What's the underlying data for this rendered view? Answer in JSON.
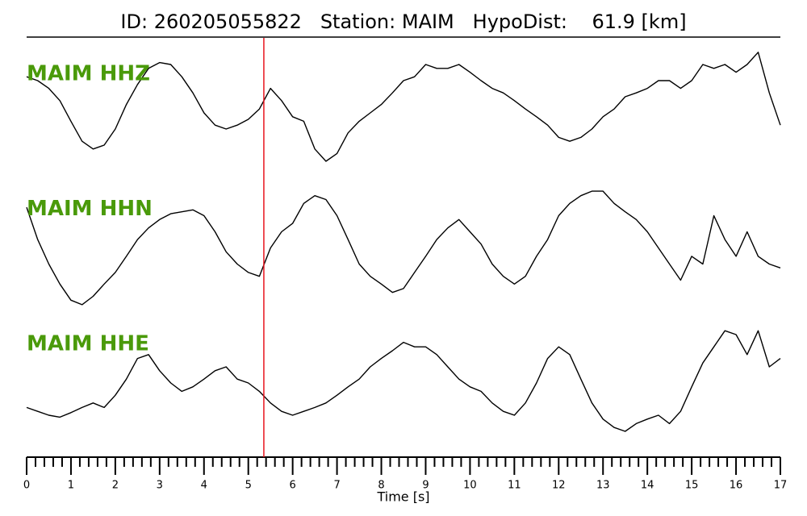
{
  "chart_data": {
    "type": "line",
    "title": "ID: 260205055822   Station: MAIM   HypoDist:    61.9 [km]",
    "xlabel": "Time [s]",
    "x": [
      0,
      0.25,
      0.5,
      0.75,
      1,
      1.25,
      1.5,
      1.75,
      2,
      2.25,
      2.5,
      2.75,
      3,
      3.25,
      3.5,
      3.75,
      4,
      4.25,
      4.5,
      4.75,
      5,
      5.25,
      5.5,
      5.75,
      6,
      6.25,
      6.5,
      6.75,
      7,
      7.25,
      7.5,
      7.75,
      8,
      8.25,
      8.5,
      8.75,
      9,
      9.25,
      9.5,
      9.75,
      10,
      10.25,
      10.5,
      10.75,
      11,
      11.25,
      11.5,
      11.75,
      12,
      12.25,
      12.5,
      12.75,
      13,
      13.25,
      13.5,
      13.75,
      14,
      14.25,
      14.5,
      14.75,
      15,
      15.25,
      15.5,
      15.75,
      16,
      16.25,
      16.5,
      16.75,
      17
    ],
    "series": [
      {
        "name": "MAIM HHZ",
        "color": "#000000",
        "values": [
          0.56,
          0.5,
          0.38,
          0.19,
          -0.13,
          -0.44,
          -0.56,
          -0.5,
          -0.25,
          0.13,
          0.44,
          0.69,
          0.78,
          0.75,
          0.56,
          0.31,
          0,
          -0.19,
          -0.25,
          -0.19,
          -0.1,
          0.06,
          0.38,
          0.19,
          -0.06,
          -0.13,
          -0.56,
          -0.75,
          -0.63,
          -0.31,
          -0.13,
          0,
          0.13,
          0.31,
          0.5,
          0.56,
          0.75,
          0.69,
          0.69,
          0.75,
          0.63,
          0.5,
          0.38,
          0.31,
          0.19,
          0.06,
          -0.06,
          -0.19,
          -0.38,
          -0.44,
          -0.38,
          -0.25,
          -0.06,
          0.06,
          0.25,
          0.31,
          0.38,
          0.5,
          0.5,
          0.38,
          0.5,
          0.75,
          0.69,
          0.75,
          0.63,
          0.75,
          0.94,
          0.31,
          -0.19
        ]
      },
      {
        "name": "MAIM HHN",
        "color": "#000000",
        "values": [
          0.63,
          0.13,
          -0.25,
          -0.56,
          -0.81,
          -0.88,
          -0.75,
          -0.56,
          -0.38,
          -0.13,
          0.13,
          0.31,
          0.44,
          0.53,
          0.56,
          0.59,
          0.5,
          0.25,
          -0.06,
          -0.25,
          -0.38,
          -0.44,
          0,
          0.25,
          0.38,
          0.69,
          0.81,
          0.75,
          0.5,
          0.13,
          -0.25,
          -0.44,
          -0.56,
          -0.69,
          -0.63,
          -0.38,
          -0.13,
          0.13,
          0.31,
          0.44,
          0.25,
          0.06,
          -0.25,
          -0.44,
          -0.56,
          -0.44,
          -0.13,
          0.13,
          0.5,
          0.69,
          0.81,
          0.88,
          0.88,
          0.69,
          0.56,
          0.44,
          0.25,
          0,
          -0.25,
          -0.5,
          -0.13,
          -0.25,
          0.5,
          0.13,
          -0.13,
          0.25,
          -0.13,
          -0.25,
          -0.31
        ]
      },
      {
        "name": "MAIM HHE",
        "color": "#000000",
        "values": [
          -0.38,
          -0.44,
          -0.5,
          -0.53,
          -0.46,
          -0.38,
          -0.31,
          -0.38,
          -0.19,
          0.06,
          0.38,
          0.44,
          0.19,
          0,
          -0.13,
          -0.06,
          0.06,
          0.19,
          0.25,
          0.06,
          0,
          -0.13,
          -0.31,
          -0.44,
          -0.5,
          -0.44,
          -0.38,
          -0.31,
          -0.19,
          -0.06,
          0.06,
          0.25,
          0.38,
          0.5,
          0.63,
          0.56,
          0.56,
          0.44,
          0.25,
          0.06,
          -0.06,
          -0.13,
          -0.31,
          -0.44,
          -0.5,
          -0.31,
          0,
          0.38,
          0.56,
          0.44,
          0.06,
          -0.31,
          -0.56,
          -0.69,
          -0.75,
          -0.63,
          -0.56,
          -0.5,
          -0.63,
          -0.44,
          -0.06,
          0.31,
          0.56,
          0.81,
          0.75,
          0.44,
          0.81,
          0.25,
          0.38
        ]
      }
    ],
    "label_color": "#4a9a0a",
    "ylim": [
      -1,
      1
    ],
    "xlim": [
      0,
      17
    ],
    "xticks": [
      0,
      1,
      2,
      3,
      4,
      5,
      6,
      7,
      8,
      9,
      10,
      11,
      12,
      13,
      14,
      15,
      16,
      17
    ],
    "xminor_per_major": 5,
    "pick_time": 5.35,
    "pick_color": "#e8141e"
  }
}
